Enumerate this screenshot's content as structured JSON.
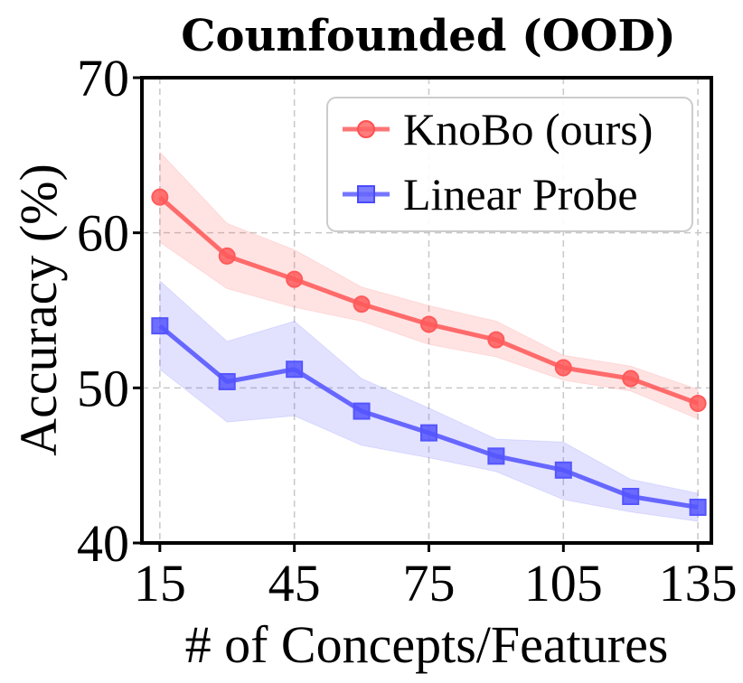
{
  "chart_data": {
    "type": "line",
    "title": "Counfounded (OOD)",
    "xlabel": "# of Concepts/Features",
    "ylabel": "Accuracy (%)",
    "x": [
      15,
      30,
      45,
      60,
      75,
      90,
      105,
      120,
      135
    ],
    "xticks": [
      15,
      45,
      75,
      105,
      135
    ],
    "yticks": [
      40,
      50,
      60,
      70
    ],
    "xlim": [
      11,
      138
    ],
    "ylim": [
      40,
      70
    ],
    "grid": true,
    "legend_position": "top-right",
    "series": [
      {
        "name": "KnoBo (ours)",
        "marker": "circle",
        "color": "#ff5a5a",
        "values": [
          62.3,
          58.5,
          57.0,
          55.4,
          54.1,
          53.1,
          51.3,
          50.6,
          49.0
        ],
        "lower": [
          59.4,
          56.4,
          55.2,
          54.3,
          52.8,
          52.0,
          50.5,
          49.8,
          48.0
        ],
        "upper": [
          65.2,
          60.6,
          58.9,
          56.5,
          55.3,
          54.3,
          52.1,
          51.4,
          49.9
        ]
      },
      {
        "name": "Linear Probe",
        "marker": "square",
        "color": "#5555ff",
        "values": [
          54.0,
          50.4,
          51.2,
          48.5,
          47.1,
          45.6,
          44.7,
          43.0,
          42.3
        ],
        "lower": [
          51.2,
          47.8,
          48.2,
          46.3,
          45.5,
          44.6,
          42.8,
          42.0,
          41.4
        ],
        "upper": [
          56.9,
          53.0,
          54.3,
          50.6,
          48.7,
          46.7,
          46.5,
          44.1,
          43.2
        ]
      }
    ]
  }
}
